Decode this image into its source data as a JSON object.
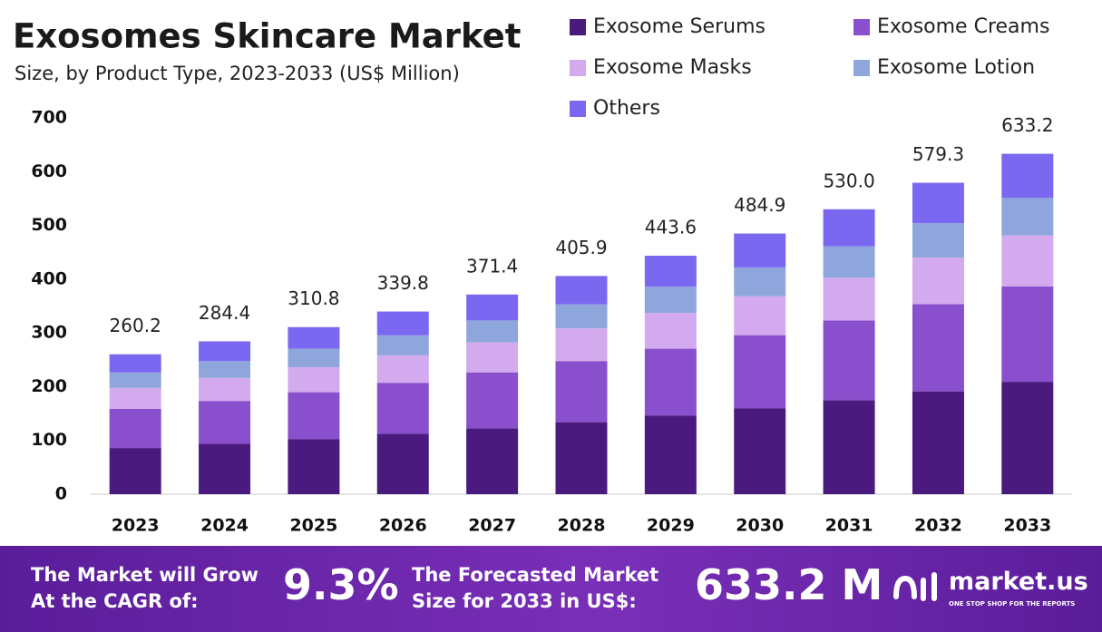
{
  "chart_data": {
    "type": "stacked_bar",
    "title": "Exosomes Skincare Market",
    "subtitle": "Size, by Product Type, 2023-2033 (US$ Million)",
    "categories": [
      "2023",
      "2024",
      "2025",
      "2026",
      "2027",
      "2028",
      "2029",
      "2030",
      "2031",
      "2032",
      "2033"
    ],
    "series": [
      {
        "name": "Exosome Serums",
        "color": "#4a1a7e",
        "values": [
          85.9,
          93.9,
          102.6,
          112.1,
          122.6,
          133.9,
          146.4,
          160.0,
          174.9,
          191.2,
          209.0
        ]
      },
      {
        "name": "Exosome Creams",
        "color": "#8a4fcc",
        "values": [
          72.9,
          79.6,
          87.0,
          95.1,
          104.0,
          113.7,
          124.2,
          135.8,
          148.4,
          162.2,
          177.3
        ]
      },
      {
        "name": "Exosome Masks",
        "color": "#d3aaee",
        "values": [
          39.0,
          42.7,
          46.6,
          51.0,
          55.7,
          60.9,
          66.5,
          72.7,
          79.5,
          86.9,
          95.0
        ]
      },
      {
        "name": "Exosome Lotion",
        "color": "#8fa6dc",
        "values": [
          28.6,
          31.3,
          34.2,
          37.4,
          40.9,
          44.6,
          48.8,
          53.3,
          58.3,
          63.7,
          69.7
        ]
      },
      {
        "name": "Others",
        "color": "#7b68f0",
        "values": [
          33.8,
          36.9,
          40.4,
          44.2,
          48.2,
          52.8,
          57.7,
          63.1,
          68.9,
          75.3,
          82.2
        ]
      }
    ],
    "totals": [
      260.2,
      284.4,
      310.8,
      339.8,
      371.4,
      405.9,
      443.6,
      484.9,
      530.0,
      579.3,
      633.2
    ],
    "totals_labels": [
      "260.2",
      "284.4",
      "310.8",
      "339.8",
      "371.4",
      "405.9",
      "443.6",
      "484.9",
      "530.0",
      "579.3",
      "633.2"
    ],
    "ylim": [
      0,
      700
    ],
    "yticks": [
      0,
      100,
      200,
      300,
      400,
      500,
      600,
      700
    ],
    "grid": false
  },
  "footer": {
    "cagr_text_1": "The Market will Grow",
    "cagr_text_2": "At the CAGR of:",
    "cagr_value": "9.3%",
    "forecast_text_1": "The Forecasted Market",
    "forecast_text_2": "Size for 2033 in US$:",
    "forecast_value": "633.2 M",
    "brand": "market.us",
    "tagline": "ONE STOP SHOP FOR THE REPORTS"
  }
}
